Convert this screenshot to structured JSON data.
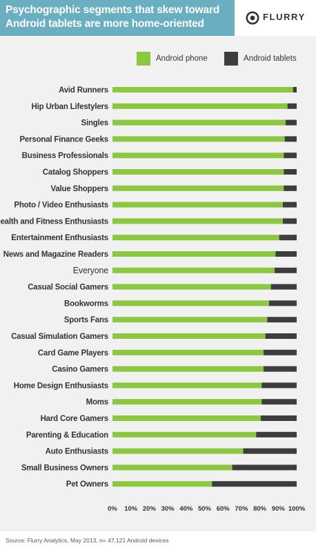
{
  "header": {
    "title_line1": "Psychographic segments that skew toward",
    "title_line2": "Android tablets are more home-oriented",
    "logo_text": "FLURRY"
  },
  "legend": {
    "phone_label": "Android phone",
    "tablet_label": "Android tablets"
  },
  "colors": {
    "header_bg": "#6aaec1",
    "phone": "#8dc63f",
    "tablet": "#3d3d3d",
    "highlight": "#5bc0de",
    "panel_bg": "#f0f1f0"
  },
  "chart_data": {
    "type": "bar",
    "orientation": "horizontal",
    "stacked": true,
    "categories": [
      "Avid Runners",
      "Hip Urban Lifestylers",
      "Singles",
      "Personal Finance Geeks",
      "Business Professionals",
      "Catalog Shoppers",
      "Value Shoppers",
      "Photo / Video Enthusiasts",
      "Health and Fitness Enthusiasts",
      "Entertainment Enthusiasts",
      "News and Magazine Readers",
      "Everyone",
      "Casual Social Gamers",
      "Bookworms",
      "Sports Fans",
      "Casual Simulation Gamers",
      "Card Game Players",
      "Casino Gamers",
      "Home Design Enthusiasts",
      "Moms",
      "Hard Core Gamers",
      "Parenting & Education",
      "Auto Enthusiasts",
      "Small Business Owners",
      "Pet Owners"
    ],
    "highlight_category": "Everyone",
    "series": [
      {
        "name": "Android phone",
        "values": [
          98,
          95,
          94,
          93.5,
          93,
          93,
          93,
          92.5,
          92.5,
          90.5,
          88.5,
          88,
          86,
          85,
          84,
          83,
          82,
          82,
          81,
          81,
          80.5,
          78,
          71,
          65,
          54
        ]
      },
      {
        "name": "Android tablets",
        "values": [
          2,
          5,
          6,
          6.5,
          7,
          7,
          7,
          7.5,
          7.5,
          9.5,
          11.5,
          12,
          14,
          15,
          16,
          17,
          18,
          18,
          19,
          19,
          19.5,
          22,
          29,
          35,
          46
        ]
      }
    ],
    "xlim": [
      0,
      100
    ],
    "xticks": [
      "0%",
      "10%",
      "20%",
      "30%",
      "40%",
      "50%",
      "60%",
      "70%",
      "80%",
      "90%",
      "100%"
    ],
    "xlabel": "",
    "ylabel": "",
    "grid": false,
    "legend_position": "top-right"
  },
  "source": "Source: Flurry Analytics, May 2013, n= 47,121 Android devices"
}
